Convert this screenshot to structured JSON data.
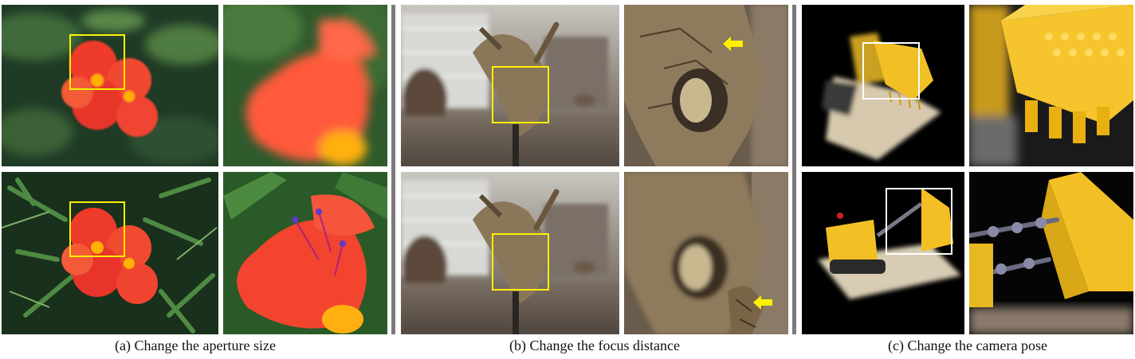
{
  "figure": {
    "captions": {
      "a": "(a) Change the aperture size",
      "b": "(b) Change the focus distance",
      "c": "(c) Change the camera pose"
    },
    "colors": {
      "highlight_box": "#FFF000",
      "highlight_box_white": "#FFFFFF",
      "arrow": "#FFF000",
      "divider": "#7A7A7A"
    },
    "panels": {
      "a_top": "shallow-dof-flower-image",
      "a_top_zoom": "shallow-dof-flower-zoom",
      "a_bottom": "all-in-focus-flower-image",
      "a_bottom_zoom": "all-in-focus-flower-zoom",
      "b_top": "triceratops-skull-focus-far-image",
      "b_top_zoom": "triceratops-skull-focus-far-zoom",
      "b_bottom": "triceratops-skull-focus-near-image",
      "b_bottom_zoom": "triceratops-skull-focus-near-zoom",
      "c_top": "lego-bulldozer-pose1-image",
      "c_top_zoom": "lego-bulldozer-pose1-zoom",
      "c_bottom": "lego-bulldozer-pose2-image",
      "c_bottom_zoom": "lego-bulldozer-pose2-zoom"
    }
  }
}
